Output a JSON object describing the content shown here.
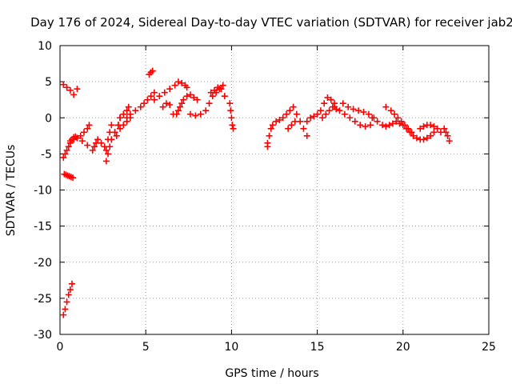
{
  "chart_data": {
    "type": "scatter",
    "title": "Day 176 of 2024, Sidereal Day-to-day VTEC variation (SDTVAR) for receiver jab2",
    "xlabel": "GPS time / hours",
    "ylabel": "SDTVAR / TECUs",
    "xlim": [
      0,
      25
    ],
    "ylim": [
      -30,
      10
    ],
    "xticks": [
      "0",
      "5",
      "10",
      "15",
      "20",
      "25"
    ],
    "yticks": [
      "10",
      "5",
      "0",
      "-5",
      "-10",
      "-15",
      "-20",
      "-25",
      "-30"
    ],
    "grid": true,
    "marker": "+",
    "color": "#ff0000",
    "series": [
      {
        "name": "SDTVAR",
        "x": [
          0.2,
          0.3,
          0.4,
          0.5,
          0.6,
          0.7,
          0.2,
          0.4,
          0.6,
          0.8,
          1.0,
          0.25,
          0.35,
          0.45,
          0.55,
          0.65,
          0.75,
          0.2,
          0.3,
          0.4,
          0.5,
          0.6,
          0.7,
          0.8,
          0.9,
          1.0,
          1.2,
          1.4,
          1.6,
          1.7,
          0.6,
          0.8,
          1.0,
          1.3,
          1.6,
          1.9,
          2.0,
          2.1,
          2.2,
          2.4,
          2.6,
          2.7,
          2.8,
          2.9,
          3.0,
          2.7,
          2.8,
          2.9,
          3.0,
          3.2,
          3.4,
          3.5,
          3.0,
          3.2,
          3.4,
          3.5,
          3.7,
          3.9,
          4.0,
          3.3,
          3.5,
          3.7,
          3.9,
          4.1,
          3.9,
          4.1,
          4.4,
          4.7,
          4.9,
          5.1,
          5.3,
          5.5,
          5.2,
          5.3,
          5.4,
          5.5,
          5.8,
          6.1,
          6.4,
          6.7,
          6.9,
          7.1,
          7.3,
          7.4,
          6.8,
          6.9,
          7.0,
          7.1,
          7.2,
          7.4,
          7.6,
          7.8,
          8.0,
          6.0,
          6.2,
          6.4,
          6.6,
          7.6,
          7.9,
          8.2,
          8.5,
          8.7,
          8.9,
          9.1,
          9.3,
          9.5,
          8.8,
          9.0,
          9.2,
          9.4,
          9.6,
          9.9,
          9.95,
          10.0,
          10.05,
          10.1,
          12.1,
          12.1,
          12.2,
          12.3,
          12.4,
          12.6,
          12.8,
          13.0,
          13.2,
          13.4,
          13.6,
          13.8,
          14.0,
          14.2,
          14.4,
          13.3,
          13.5,
          13.7,
          14.4,
          14.6,
          14.8,
          15.0,
          15.2,
          15.4,
          15.6,
          15.8,
          16.0,
          15.3,
          15.5,
          15.7,
          15.9,
          16.1,
          16.0,
          16.3,
          16.6,
          16.9,
          17.2,
          17.5,
          17.8,
          18.1,
          16.5,
          16.8,
          17.1,
          17.4,
          17.7,
          18.0,
          18.3,
          18.2,
          18.5,
          18.8,
          19.0,
          19.2,
          19.4,
          19.6,
          19.8,
          19.0,
          19.3,
          19.5,
          19.7,
          19.9,
          20.1,
          20.3,
          20.5,
          20.0,
          20.2,
          20.4,
          20.6,
          20.8,
          21.0,
          21.2,
          21.4,
          21.6,
          21.8,
          21.0,
          21.2,
          21.4,
          21.6,
          21.8,
          22.0,
          22.2,
          22.4,
          22.5,
          22.6,
          22.7
        ],
        "y": [
          -27.3,
          -26.5,
          -25.5,
          -24.5,
          -23.8,
          -23.0,
          4.6,
          4.2,
          3.8,
          3.2,
          4.0,
          -7.8,
          -7.9,
          -8.0,
          -8.1,
          -8.2,
          -8.3,
          -5.5,
          -5.0,
          -4.5,
          -4.0,
          -3.5,
          -3.0,
          -2.7,
          -2.6,
          -2.8,
          -2.5,
          -2.0,
          -1.5,
          -1.0,
          -3.2,
          -3.0,
          -2.8,
          -3.2,
          -3.8,
          -4.5,
          -4.0,
          -3.5,
          -3.0,
          -3.5,
          -4.0,
          -4.5,
          -3.0,
          -2.0,
          -1.0,
          -6.0,
          -5.0,
          -4.0,
          -3.0,
          -2.0,
          -1.0,
          0.0,
          -3.0,
          -2.0,
          -1.0,
          0.0,
          0.5,
          1.0,
          1.5,
          -2.5,
          -1.5,
          -1.0,
          -0.5,
          0.0,
          0.0,
          0.5,
          1.0,
          1.5,
          2.0,
          2.5,
          3.0,
          3.5,
          6.0,
          6.3,
          6.5,
          2.5,
          3.0,
          3.5,
          4.0,
          4.5,
          5.0,
          4.8,
          4.5,
          4.2,
          0.5,
          1.0,
          1.5,
          2.0,
          2.5,
          3.0,
          3.2,
          2.8,
          2.5,
          1.5,
          2.0,
          1.8,
          0.5,
          0.5,
          0.3,
          0.5,
          1.0,
          2.0,
          3.0,
          3.5,
          4.0,
          4.5,
          3.5,
          3.8,
          4.2,
          4.0,
          3.0,
          2.0,
          1.0,
          0.0,
          -1.0,
          -1.5,
          -4.0,
          -3.5,
          -2.5,
          -1.5,
          -1.0,
          -0.5,
          -0.3,
          0.0,
          0.5,
          1.0,
          1.5,
          0.5,
          -0.5,
          -1.5,
          -2.5,
          -1.5,
          -1.0,
          -0.5,
          -0.5,
          0.0,
          0.2,
          0.5,
          1.0,
          2.0,
          2.8,
          2.5,
          2.0,
          0.0,
          0.5,
          1.0,
          1.5,
          1.2,
          1.5,
          1.0,
          0.5,
          0.0,
          -0.5,
          -1.0,
          -1.2,
          -1.0,
          2.0,
          1.5,
          1.2,
          1.0,
          0.8,
          0.5,
          0.0,
          0.0,
          -0.5,
          -1.0,
          -1.2,
          -1.0,
          -0.8,
          -0.5,
          -0.8,
          1.5,
          1.0,
          0.5,
          0.0,
          -0.5,
          -1.0,
          -1.5,
          -2.0,
          -1.0,
          -1.5,
          -2.0,
          -2.5,
          -2.8,
          -3.0,
          -3.0,
          -2.8,
          -2.5,
          -2.0,
          -1.5,
          -1.2,
          -1.0,
          -1.0,
          -1.2,
          -1.5,
          -2.0,
          -1.5,
          -2.0,
          -2.5,
          -3.2
        ]
      }
    ]
  }
}
